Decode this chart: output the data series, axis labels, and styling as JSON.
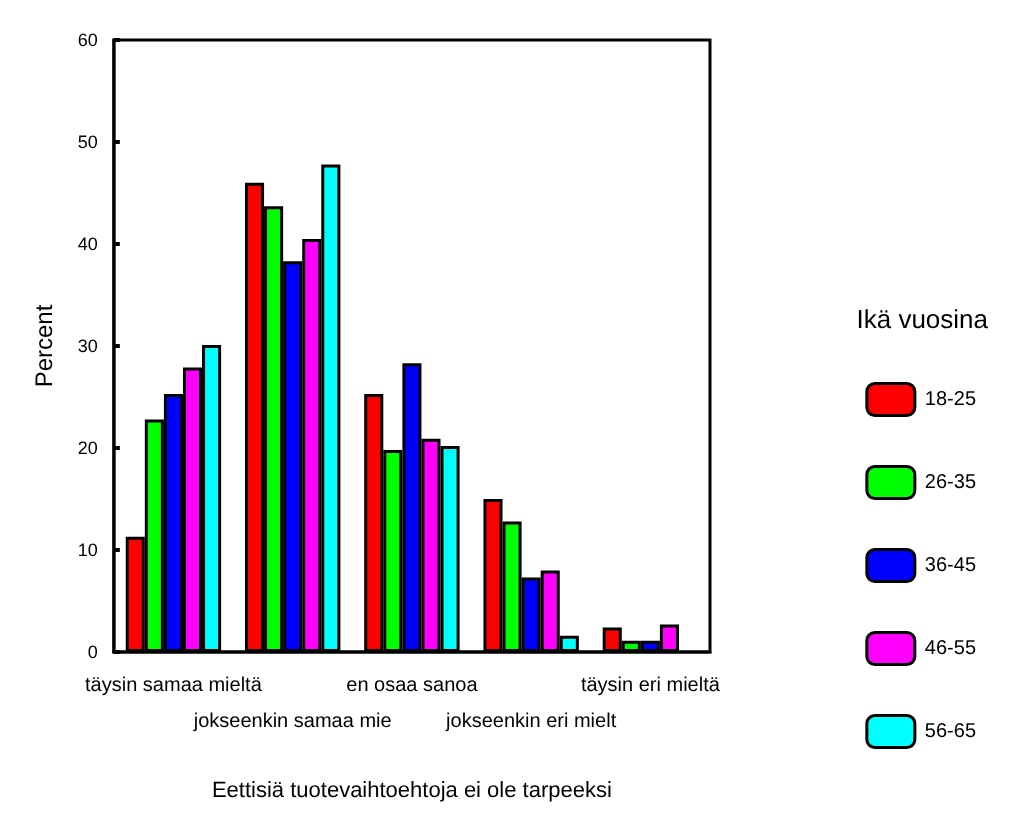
{
  "chart_data": {
    "type": "bar",
    "xlabel": "Eettisiä tuotevaihtoehtoja ei ole tarpeeksi",
    "ylabel": "Percent",
    "legend_title": "Ikä vuosina",
    "categories": [
      "täysin samaa mieltä",
      "jokseenkin samaa mie",
      "en osaa sanoa",
      "jokseenkin eri mielt",
      "täysin eri mieltä"
    ],
    "series": [
      {
        "name": "18-25",
        "color": "#ff0000",
        "values": [
          11.3,
          46,
          25.3,
          15,
          2.4
        ]
      },
      {
        "name": "26-35",
        "color": "#00ff00",
        "values": [
          22.8,
          43.7,
          19.8,
          12.8,
          1.1
        ]
      },
      {
        "name": "36-45",
        "color": "#0000ff",
        "values": [
          25.3,
          38.3,
          28.3,
          7.3,
          1.1
        ]
      },
      {
        "name": "46-55",
        "color": "#ff00ff",
        "values": [
          27.9,
          40.5,
          20.9,
          8,
          2.7
        ]
      },
      {
        "name": "56-65",
        "color": "#00ffff",
        "values": [
          30.1,
          47.8,
          20.2,
          1.6,
          null
        ]
      }
    ],
    "ylim": [
      0,
      60
    ],
    "yticks": [
      0,
      10,
      20,
      30,
      40,
      50,
      60
    ],
    "grid": false,
    "legend": "right"
  }
}
